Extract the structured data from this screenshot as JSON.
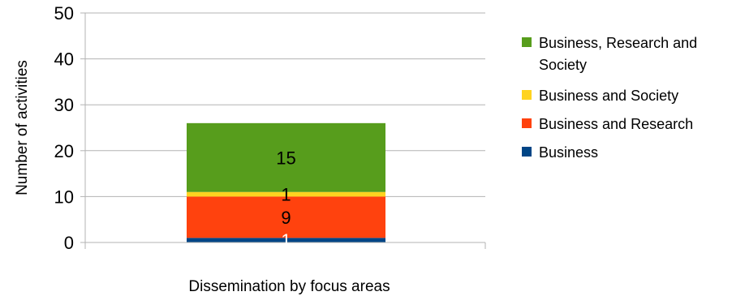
{
  "chart_data": {
    "type": "bar",
    "stacked": true,
    "categories": [
      ""
    ],
    "xlabel": "Dissemination by focus areas",
    "ylabel": "Number of activities",
    "ylim": [
      0,
      50
    ],
    "yticks": [
      0,
      10,
      20,
      30,
      40,
      50
    ],
    "grid": "horizontal",
    "legend_position": "right",
    "series": [
      {
        "name": "Business",
        "values": [
          1
        ],
        "color": "#004586",
        "label_color": "#ffffff"
      },
      {
        "name": "Business and Research",
        "values": [
          9
        ],
        "color": "#ff420e",
        "label_color": "#000000"
      },
      {
        "name": "Business and Society",
        "values": [
          1
        ],
        "color": "#ffd320",
        "label_color": "#000000"
      },
      {
        "name": "Business, Research and Society",
        "values": [
          15
        ],
        "color": "#579d1c",
        "label_color": "#000000"
      }
    ]
  }
}
